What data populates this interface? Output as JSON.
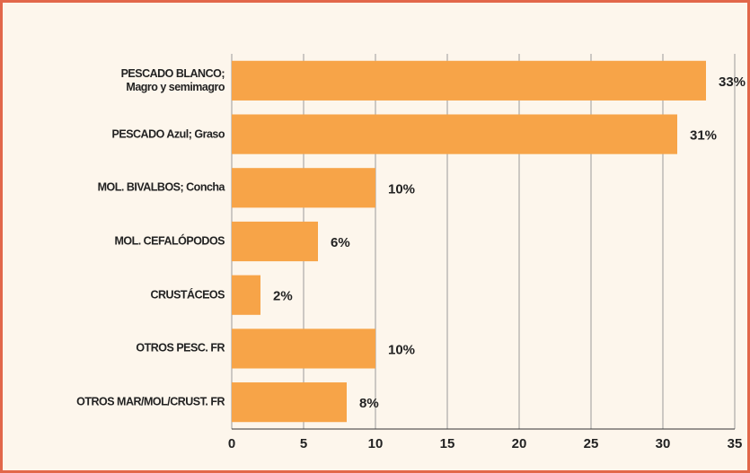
{
  "chart_data": {
    "type": "bar",
    "orientation": "horizontal",
    "categories": [
      "PESCADO BLANCO;\nMagro y semimagro",
      "PESCADO Azul; Graso",
      "MOL. BIVALBOS; Concha",
      "MOL. CEFALÓPODOS",
      "CRUSTÁCEOS",
      "OTROS PESC. FR",
      "OTROS MAR/MOL/CRUST. FR"
    ],
    "values": [
      33,
      31,
      10,
      6,
      2,
      10,
      8
    ],
    "value_labels": [
      "33%",
      "31%",
      "10%",
      "6%",
      "2%",
      "10%",
      "8%"
    ],
    "color": "#f7a448",
    "xlim": [
      0,
      35
    ],
    "xticks": [
      0,
      5,
      10,
      15,
      20,
      25,
      30,
      35
    ],
    "grid": true
  }
}
